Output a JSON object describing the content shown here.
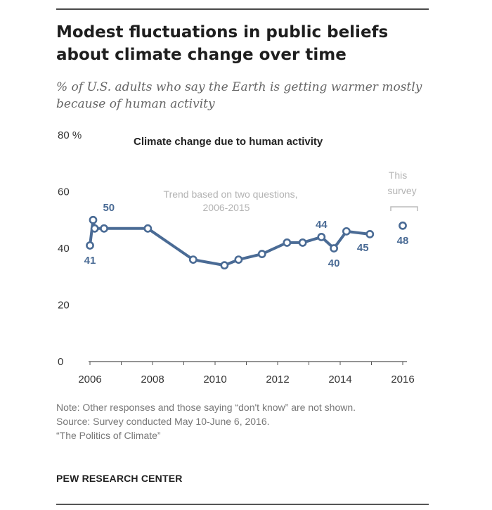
{
  "title": "Modest fluctuations in public beliefs about climate change over time",
  "subtitle": "% of U.S. adults who say the Earth is getting warmer mostly because of human activity",
  "chart_data": {
    "type": "line",
    "title": "Climate change due to human activity",
    "y_unit_label": "80 %",
    "ylim": [
      0,
      80
    ],
    "yticks": [
      0,
      20,
      40,
      60,
      80
    ],
    "xlim": [
      2006,
      2016
    ],
    "xticks": [
      2006,
      2008,
      2010,
      2012,
      2014,
      2016
    ],
    "xtick_labels": [
      "2006",
      "2008",
      "2010",
      "2012",
      "2014",
      "2016"
    ],
    "grid": false,
    "color": "#4a6b95",
    "series": [
      {
        "values": [
          {
            "x": 2006.0,
            "y": 41
          },
          {
            "x": 2006.1,
            "y": 50
          },
          {
            "x": 2006.15,
            "y": 47
          },
          {
            "x": 2006.45,
            "y": 47
          },
          {
            "x": 2007.85,
            "y": 47
          },
          {
            "x": 2009.3,
            "y": 36
          },
          {
            "x": 2010.3,
            "y": 34
          },
          {
            "x": 2010.75,
            "y": 36
          },
          {
            "x": 2011.5,
            "y": 38
          },
          {
            "x": 2012.3,
            "y": 42
          },
          {
            "x": 2012.8,
            "y": 42
          },
          {
            "x": 2013.4,
            "y": 44
          },
          {
            "x": 2013.8,
            "y": 40
          },
          {
            "x": 2014.2,
            "y": 46
          },
          {
            "x": 2014.95,
            "y": 45
          }
        ]
      },
      {
        "values": [
          {
            "x": 2016.0,
            "y": 48
          }
        ]
      }
    ],
    "data_labels": [
      {
        "text": "50",
        "x": 2006.1,
        "y": 50,
        "pos": "above-right"
      },
      {
        "text": "41",
        "x": 2006.0,
        "y": 41,
        "pos": "below"
      },
      {
        "text": "44",
        "x": 2013.4,
        "y": 44,
        "pos": "above"
      },
      {
        "text": "40",
        "x": 2013.8,
        "y": 40,
        "pos": "below"
      },
      {
        "text": "45",
        "x": 2014.95,
        "y": 45,
        "pos": "below-left"
      },
      {
        "text": "48",
        "x": 2016.0,
        "y": 48,
        "pos": "below"
      }
    ],
    "annotations": {
      "trend_note_line1": "Trend based on two questions,",
      "trend_note_line2": "2006-2015",
      "this_survey_line1": "This",
      "this_survey_line2": "survey"
    }
  },
  "notes": {
    "note": "Note: Other responses and those saying “don't know” are not shown.",
    "source": "Source: Survey conducted May 10-June 6, 2016.",
    "report": "“The Politics of Climate”"
  },
  "brand": "PEW RESEARCH CENTER"
}
